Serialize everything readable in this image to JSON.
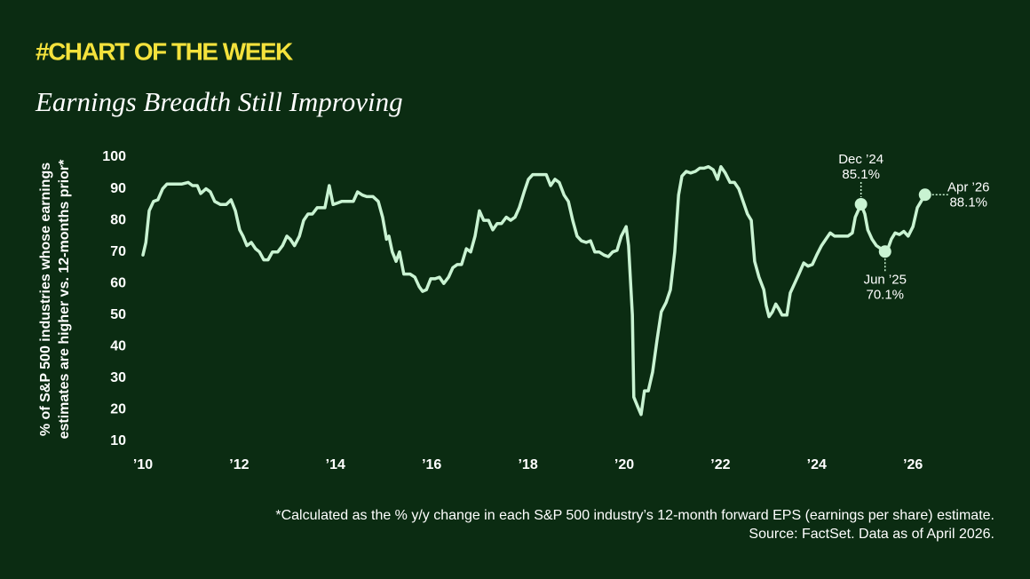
{
  "chart_data": {
    "type": "line",
    "kicker": "#CHART OF THE WEEK",
    "title": "Earnings Breadth Still Improving",
    "y_label": [
      "% of S&P 500 industries whose earnings",
      "estimates are higher vs. 12-months prior*"
    ],
    "footnotes": [
      "*Calculated as the % y/y change in each S&P 500 industry’s 12-month forward EPS (earnings per share) estimate.",
      "Source: FactSet. Data as of April 2026."
    ],
    "color": "#c9f3d2",
    "xlim": [
      2010,
      2026.5
    ],
    "ylim": [
      10,
      100
    ],
    "yticks": [
      10,
      20,
      30,
      40,
      50,
      60,
      70,
      80,
      90,
      100
    ],
    "xticks": [
      {
        "value": 2010,
        "label": "’10"
      },
      {
        "value": 2012,
        "label": "’12"
      },
      {
        "value": 2014,
        "label": "’14"
      },
      {
        "value": 2016,
        "label": "’16"
      },
      {
        "value": 2018,
        "label": "’18"
      },
      {
        "value": 2020,
        "label": "’20"
      },
      {
        "value": 2022,
        "label": "’22"
      },
      {
        "value": 2024,
        "label": "’24"
      },
      {
        "value": 2026,
        "label": "’26"
      }
    ],
    "x": [
      2010.0,
      2010.06,
      2010.13,
      2010.22,
      2010.31,
      2010.41,
      2010.5,
      2010.63,
      2010.81,
      2010.94,
      2011.03,
      2011.13,
      2011.2,
      2011.31,
      2011.4,
      2011.49,
      2011.61,
      2011.73,
      2011.83,
      2011.92,
      2012.01,
      2012.08,
      2012.16,
      2012.25,
      2012.34,
      2012.42,
      2012.51,
      2012.6,
      2012.69,
      2012.8,
      2012.9,
      2012.99,
      2013.06,
      2013.15,
      2013.25,
      2013.34,
      2013.43,
      2013.52,
      2013.62,
      2013.71,
      2013.78,
      2013.87,
      2013.95,
      2014.04,
      2014.13,
      2014.26,
      2014.37,
      2014.46,
      2014.56,
      2014.65,
      2014.78,
      2014.89,
      2014.98,
      2015.06,
      2015.11,
      2015.18,
      2015.26,
      2015.33,
      2015.42,
      2015.55,
      2015.65,
      2015.74,
      2015.81,
      2015.89,
      2015.98,
      2016.07,
      2016.16,
      2016.25,
      2016.35,
      2016.44,
      2016.53,
      2016.62,
      2016.72,
      2016.81,
      2016.9,
      2016.99,
      2017.08,
      2017.18,
      2017.27,
      2017.36,
      2017.45,
      2017.55,
      2017.64,
      2017.73,
      2017.82,
      2017.92,
      2018.01,
      2018.1,
      2018.19,
      2018.28,
      2018.38,
      2018.47,
      2018.56,
      2018.65,
      2018.75,
      2018.84,
      2018.93,
      2019.02,
      2019.11,
      2019.21,
      2019.3,
      2019.39,
      2019.48,
      2019.58,
      2019.67,
      2019.76,
      2019.85,
      2019.94,
      2020.04,
      2020.09,
      2020.17,
      2020.2,
      2020.28,
      2020.35,
      2020.42,
      2020.5,
      2020.59,
      2020.68,
      2020.77,
      2020.87,
      2020.96,
      2021.05,
      2021.13,
      2021.2,
      2021.29,
      2021.38,
      2021.48,
      2021.57,
      2021.66,
      2021.75,
      2021.85,
      2021.94,
      2022.01,
      2022.1,
      2022.2,
      2022.29,
      2022.38,
      2022.47,
      2022.56,
      2022.64,
      2022.71,
      2022.8,
      2022.9,
      2022.95,
      2023.01,
      2023.08,
      2023.15,
      2023.21,
      2023.28,
      2023.38,
      2023.45,
      2023.54,
      2023.63,
      2023.73,
      2023.82,
      2023.91,
      2024.0,
      2024.1,
      2024.19,
      2024.28,
      2024.37,
      2024.46,
      2024.56,
      2024.65,
      2024.74,
      2024.8,
      2024.92,
      2025.0,
      2025.06,
      2025.15,
      2025.24,
      2025.42,
      2025.48,
      2025.55,
      2025.63,
      2025.72,
      2025.81,
      2025.9,
      2026.0,
      2026.09,
      2026.25
    ],
    "values": [
      69,
      73,
      83,
      86,
      86.5,
      90,
      91.5,
      91.5,
      91.5,
      92,
      91,
      91,
      88.5,
      90,
      89,
      86,
      85,
      85,
      86.5,
      83,
      77,
      75,
      72,
      73,
      71,
      70,
      67.5,
      67.5,
      70,
      70,
      72,
      75,
      74,
      72,
      75,
      80,
      82,
      82,
      84,
      84,
      84,
      91,
      85,
      85.5,
      86,
      86,
      86,
      89,
      88,
      87.5,
      87.5,
      86,
      81,
      74,
      75,
      70,
      67,
      70,
      63,
      63,
      62,
      59,
      57.5,
      58,
      61.5,
      61.5,
      62,
      60,
      62,
      65,
      66,
      66,
      71,
      70,
      75,
      83,
      80,
      80,
      77,
      79,
      79,
      81,
      80,
      81,
      84,
      89,
      93,
      94.5,
      94.5,
      94.5,
      94.5,
      91,
      93,
      92,
      88,
      86,
      80,
      75,
      73.5,
      73,
      73.5,
      70,
      70,
      69,
      68.5,
      70,
      70.5,
      75,
      78,
      72,
      50,
      24,
      21,
      18.5,
      26,
      26,
      32,
      42,
      51,
      54,
      58,
      70,
      88,
      94,
      95.5,
      95,
      95.5,
      96.5,
      96.5,
      97,
      96,
      93,
      97,
      95,
      92,
      92,
      90,
      86,
      82,
      80,
      67,
      62,
      58,
      53,
      49.5,
      51,
      53.5,
      52,
      50,
      50,
      57,
      60,
      63,
      66.5,
      65.5,
      66,
      69,
      72,
      74,
      76,
      75,
      75,
      75,
      75,
      76,
      81,
      85.1,
      82,
      77,
      74,
      72,
      70.1,
      71,
      74,
      76,
      75.5,
      76.5,
      75,
      78,
      84,
      88.1
    ],
    "annotations": [
      {
        "label": "Dec ’24",
        "value_label": "85.1%",
        "x": 2024.92,
        "y": 85.1
      },
      {
        "label": "Jun ’25",
        "value_label": "70.1%",
        "x": 2025.42,
        "y": 70.1
      },
      {
        "label": "Apr ’26",
        "value_label": "88.1%",
        "x": 2026.25,
        "y": 88.1
      }
    ]
  }
}
